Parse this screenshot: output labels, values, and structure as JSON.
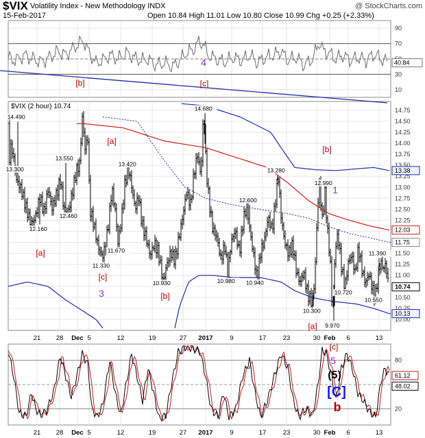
{
  "header": {
    "symbol": "$VIX",
    "description": "Volatility Index - New Methodology",
    "exchange": "INDX",
    "date": "15-Feb-2017",
    "open_label": "Open",
    "open": "10.84",
    "high_label": "High",
    "high": "11.01",
    "low_label": "Low",
    "low": "10.80",
    "close_label": "Close",
    "close": "10.99",
    "chg_label": "Chg",
    "chg": "+0.25 (+2.33%)",
    "copyright": "@ StockCharts.com"
  },
  "colors": {
    "price_bar": "#000000",
    "ma_red": "#d11a1a",
    "bollinger": "#1c2ba8",
    "rsi_line": "#6a6a6a",
    "stoch_k": "#000000",
    "stoch_d": "#c41a1a",
    "grid": "#e6e6e6",
    "annot_red": "#b00000",
    "annot_purple": "#8a2fc9",
    "annot_blue": "#1a1ad8",
    "current_tag_bg": "#ffffff"
  },
  "x_axis": {
    "labels": [
      {
        "text": "21",
        "x": 54
      },
      {
        "text": "28",
        "x": 87
      },
      {
        "text": "Dec",
        "x": 113,
        "bold": true
      },
      {
        "text": "5",
        "x": 130
      },
      {
        "text": "12",
        "x": 176
      },
      {
        "text": "19",
        "x": 222
      },
      {
        "text": "27",
        "x": 267
      },
      {
        "text": "2017",
        "x": 300,
        "bold": true
      },
      {
        "text": "9",
        "x": 338
      },
      {
        "text": "17",
        "x": 383
      },
      {
        "text": "23",
        "x": 418
      },
      {
        "text": "30",
        "x": 462
      },
      {
        "text": "Feb",
        "x": 481,
        "bold": true
      },
      {
        "text": "6",
        "x": 508
      },
      {
        "text": "13",
        "x": 553
      }
    ]
  },
  "chart_data": [
    {
      "type": "line",
      "name": "RSI",
      "ylim": [
        0,
        100
      ],
      "ticks": [
        "90",
        "70",
        "50",
        "30",
        "10"
      ],
      "last_value_label": "40.84",
      "annotations": [
        {
          "text": "4",
          "color": "purple",
          "x": 297,
          "y": 96
        },
        {
          "text": "[b]",
          "color": "red",
          "x": 117,
          "y": 125
        },
        {
          "text": "[c]",
          "color": "red",
          "x": 298,
          "y": 126
        }
      ]
    },
    {
      "type": "ohlc",
      "title": "$VIX (2 hour) 10.74",
      "ylim": [
        9.75,
        14.95
      ],
      "ticks": [
        "14.75",
        "14.50",
        "14.25",
        "14.00",
        "13.75",
        "13.50",
        "13.25",
        "13.00",
        "12.75",
        "12.50",
        "12.25",
        "12.00",
        "11.75",
        "11.50",
        "11.25",
        "11.00",
        "10.75",
        "10.50",
        "10.25",
        "10.00"
      ],
      "right_tags": [
        {
          "text": "13.38",
          "value": 13.38,
          "style": "blue"
        },
        {
          "text": "12.03",
          "value": 12.03,
          "style": "red"
        },
        {
          "text": "11.75",
          "value": 11.75,
          "style": "gray"
        },
        {
          "text": "10.74",
          "value": 10.74,
          "style": "current"
        },
        {
          "text": "10.13",
          "value": 10.13,
          "style": "blue"
        }
      ],
      "price_labels": [
        {
          "text": "14.490",
          "x": 26,
          "value": 14.49
        },
        {
          "text": "13.300",
          "x": 24,
          "value": 13.3
        },
        {
          "text": "12.160",
          "x": 58,
          "value": 12.16
        },
        {
          "text": "13.550",
          "x": 96,
          "value": 13.55
        },
        {
          "text": "12.460",
          "x": 102,
          "value": 12.46
        },
        {
          "text": "14.680",
          "x": 299,
          "value": 14.68
        },
        {
          "text": "13.420",
          "x": 188,
          "value": 13.42
        },
        {
          "text": "11.670",
          "x": 172,
          "value": 11.67
        },
        {
          "text": "11.330",
          "x": 150,
          "value": 11.33
        },
        {
          "text": "10.930",
          "x": 238,
          "value": 10.93
        },
        {
          "text": "12.600",
          "x": 364,
          "value": 12.6
        },
        {
          "text": "13.280",
          "x": 405,
          "value": 13.28
        },
        {
          "text": "10.980",
          "x": 332,
          "value": 10.98
        },
        {
          "text": "10.940",
          "x": 374,
          "value": 10.94
        },
        {
          "text": "12.990",
          "x": 474,
          "value": 12.99
        },
        {
          "text": "10.300",
          "x": 457,
          "value": 10.3
        },
        {
          "text": "9.970",
          "x": 487,
          "value": 9.97
        },
        {
          "text": "10.720",
          "x": 503,
          "value": 10.72
        },
        {
          "text": "11.390",
          "x": 553,
          "value": 11.39
        },
        {
          "text": "10.550",
          "x": 547,
          "value": 10.55
        }
      ],
      "annotations": [
        {
          "text": "[a]",
          "color": "red",
          "x": 163,
          "y": 210
        },
        {
          "text": "[b]",
          "color": "red",
          "x": 477,
          "y": 222
        },
        {
          "text": "1",
          "color": "purple",
          "x": 489,
          "y": 282
        },
        {
          "text": "[a]",
          "color": "red",
          "x": 59,
          "y": 373
        },
        {
          "text": "[c]",
          "color": "red",
          "x": 150,
          "y": 408
        },
        {
          "text": "3",
          "color": "purple",
          "x": 148,
          "y": 433
        },
        {
          "text": "[b]",
          "color": "red",
          "x": 241,
          "y": 436
        },
        {
          "text": "[a]",
          "color": "red",
          "x": 456,
          "y": 480
        }
      ],
      "anchors": [
        [
          0,
          14.45
        ],
        [
          6,
          13.8
        ],
        [
          11,
          13.3
        ],
        [
          17,
          13.9
        ],
        [
          24,
          13.1
        ],
        [
          31,
          12.9
        ],
        [
          38,
          12.5
        ],
        [
          45,
          12.16
        ],
        [
          51,
          12.3
        ],
        [
          58,
          12.8
        ],
        [
          64,
          12.5
        ],
        [
          70,
          13.0
        ],
        [
          76,
          12.6
        ],
        [
          82,
          12.9
        ],
        [
          88,
          13.25
        ],
        [
          93,
          12.6
        ],
        [
          99,
          12.46
        ],
        [
          105,
          12.9
        ],
        [
          111,
          13.4
        ],
        [
          116,
          13.55
        ],
        [
          120,
          14.6
        ],
        [
          124,
          13.9
        ],
        [
          128,
          14.1
        ],
        [
          131,
          12.5
        ],
        [
          137,
          12.1
        ],
        [
          143,
          11.6
        ],
        [
          149,
          11.33
        ],
        [
          154,
          11.6
        ],
        [
          159,
          12.2
        ],
        [
          163,
          12.9
        ],
        [
          168,
          12.4
        ],
        [
          172,
          11.67
        ],
        [
          177,
          12.2
        ],
        [
          182,
          13.0
        ],
        [
          187,
          13.42
        ],
        [
          192,
          13.0
        ],
        [
          197,
          12.5
        ],
        [
          202,
          12.8
        ],
        [
          207,
          12.2
        ],
        [
          213,
          11.9
        ],
        [
          219,
          11.5
        ],
        [
          225,
          11.8
        ],
        [
          231,
          11.6
        ],
        [
          238,
          10.93
        ],
        [
          243,
          11.3
        ],
        [
          249,
          11.6
        ],
        [
          255,
          11.4
        ],
        [
          261,
          11.9
        ],
        [
          267,
          12.4
        ],
        [
          272,
          12.9
        ],
        [
          278,
          12.6
        ],
        [
          283,
          13.3
        ],
        [
          288,
          13.7
        ],
        [
          293,
          13.2
        ],
        [
          297,
          14.68
        ],
        [
          301,
          13.3
        ],
        [
          305,
          12.6
        ],
        [
          310,
          12.0
        ],
        [
          316,
          11.8
        ],
        [
          322,
          11.3
        ],
        [
          328,
          11.6
        ],
        [
          332,
          10.98
        ],
        [
          337,
          11.7
        ],
        [
          343,
          12.0
        ],
        [
          349,
          11.5
        ],
        [
          355,
          12.3
        ],
        [
          360,
          12.6
        ],
        [
          366,
          11.9
        ],
        [
          372,
          11.3
        ],
        [
          375,
          10.94
        ],
        [
          380,
          11.6
        ],
        [
          386,
          11.9
        ],
        [
          391,
          12.4
        ],
        [
          397,
          12.1
        ],
        [
          402,
          12.8
        ],
        [
          406,
          13.28
        ],
        [
          410,
          12.4
        ],
        [
          415,
          11.8
        ],
        [
          421,
          11.5
        ],
        [
          427,
          11.7
        ],
        [
          432,
          11.1
        ],
        [
          437,
          10.8
        ],
        [
          443,
          11.0
        ],
        [
          449,
          10.5
        ],
        [
          455,
          10.3
        ],
        [
          459,
          10.8
        ],
        [
          463,
          12.4
        ],
        [
          466,
          12.99
        ],
        [
          470,
          12.2
        ],
        [
          474,
          12.8
        ],
        [
          478,
          11.9
        ],
        [
          482,
          11.2
        ],
        [
          485,
          9.97
        ],
        [
          489,
          11.6
        ],
        [
          493,
          11.9
        ],
        [
          498,
          11.2
        ],
        [
          503,
          10.72
        ],
        [
          508,
          11.3
        ],
        [
          513,
          11.5
        ],
        [
          518,
          11.1
        ],
        [
          523,
          11.7
        ],
        [
          528,
          11.2
        ],
        [
          533,
          10.9
        ],
        [
          538,
          11.1
        ],
        [
          543,
          10.8
        ],
        [
          547,
          10.55
        ],
        [
          551,
          11.0
        ],
        [
          555,
          11.39
        ],
        [
          559,
          11.2
        ],
        [
          563,
          11.3
        ],
        [
          567,
          10.74
        ]
      ]
    },
    {
      "type": "line",
      "name": "Stochastic",
      "ylim": [
        0,
        100
      ],
      "ticks": [
        "80",
        "20"
      ],
      "right_tags": [
        {
          "text": "61.12",
          "value": 61.12
        },
        {
          "text": "48.02",
          "value": 48.02
        }
      ],
      "annotations": [
        {
          "text": "[c]",
          "color": "red",
          "x": 487,
          "y": 510
        },
        {
          "text": "5",
          "color": "purple",
          "x": 486,
          "y": 531
        },
        {
          "text": "(5)",
          "color": "black",
          "x": 488,
          "y": 552
        },
        {
          "text": "[C]",
          "color": "blue",
          "x": 491,
          "y": 578
        },
        {
          "text": "b",
          "color": "red",
          "x": 492,
          "y": 600
        }
      ]
    }
  ]
}
